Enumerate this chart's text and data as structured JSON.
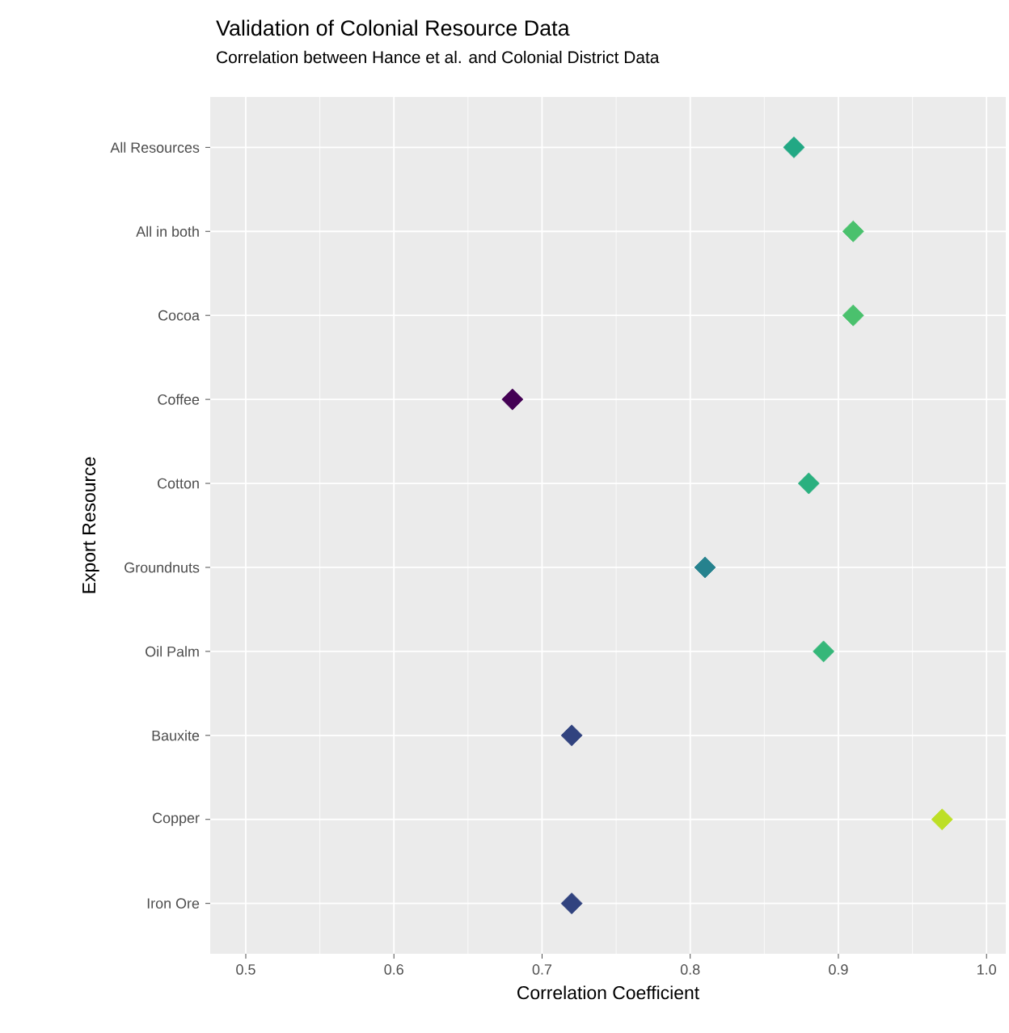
{
  "chart_data": {
    "type": "scatter",
    "orientation": "horizontal",
    "title": "Validation of Colonial Resource Data",
    "subtitle": "Correlation between Hance et al. and Colonial District Data",
    "xlabel": "Correlation Coefficient",
    "ylabel": "Export Resource",
    "categories": [
      "All Resources",
      "All in both",
      "Cocoa",
      "Coffee",
      "Cotton",
      "Groundnuts",
      "Oil Palm",
      "Bauxite",
      "Copper",
      "Iron Ore"
    ],
    "values": [
      0.87,
      0.91,
      0.91,
      0.68,
      0.88,
      0.81,
      0.89,
      0.72,
      0.97,
      0.72
    ],
    "colors": [
      "#22a884",
      "#4ac16d",
      "#4ac16d",
      "#440154",
      "#2ab07f",
      "#26828e",
      "#35b779",
      "#31437f",
      "#bddf26",
      "#31437f"
    ],
    "xlim": [
      0.476,
      1.013
    ],
    "xticks": [
      0.5,
      0.6,
      0.7,
      0.8,
      0.9,
      {
        "value": 1,
        "label": "1.0"
      }
    ],
    "grid": true,
    "marker": "diamond"
  }
}
